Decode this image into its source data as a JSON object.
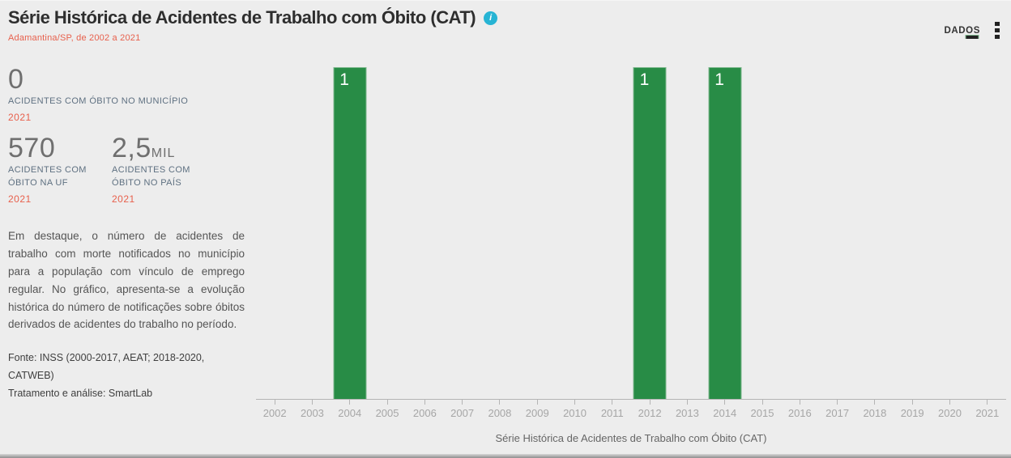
{
  "header": {
    "title": "Série Histórica de Acidentes de Trabalho com Óbito (CAT)",
    "subtitle": "Adamantina/SP, de 2002 a 2021",
    "dados_label": "DADOS"
  },
  "icons": {
    "info_glyph": "i"
  },
  "stats": [
    {
      "value": "0",
      "suffix": "",
      "label": "ACIDENTES COM ÓBITO NO MUNICÍPIO",
      "year": "2021"
    },
    {
      "value": "570",
      "suffix": "",
      "label": "ACIDENTES COM ÓBITO NA UF",
      "year": "2021"
    },
    {
      "value": "2,5",
      "suffix": "MIL",
      "label": "ACIDENTES COM ÓBITO NO PAÍS",
      "year": "2021"
    }
  ],
  "description": "Em destaque, o número de acidentes de trabalho com morte notificados no município para a população com vínculo de emprego regular. No gráfico, apresenta-se a evolução histórica do número de notificações sobre óbitos derivados de acidentes do trabalho no período.",
  "source": "Fonte: INSS (2000-2017, AEAT; 2018-2020, CATWEB)",
  "treatment": "Tratamento e análise: SmartLab",
  "colors": {
    "bar": "#288c46",
    "bar_border": "#7fb88e",
    "accent_coral": "#e8604c",
    "info_icon": "#27b4d4",
    "axis": "#b5b5b5"
  },
  "chart_data": {
    "type": "bar",
    "title": "Série Histórica de Acidentes de Trabalho com Óbito (CAT)",
    "categories": [
      "2002",
      "2003",
      "2004",
      "2005",
      "2006",
      "2007",
      "2008",
      "2009",
      "2010",
      "2011",
      "2012",
      "2013",
      "2014",
      "2015",
      "2016",
      "2017",
      "2018",
      "2019",
      "2020",
      "2021"
    ],
    "values": [
      0,
      0,
      1,
      0,
      0,
      0,
      0,
      0,
      0,
      0,
      1,
      0,
      1,
      0,
      0,
      0,
      0,
      0,
      0,
      0
    ],
    "xlabel": "",
    "ylabel": "",
    "ylim": [
      0,
      1
    ],
    "grid": false,
    "legend": null,
    "bar_value_labels_shown_only_when_positive": true
  }
}
